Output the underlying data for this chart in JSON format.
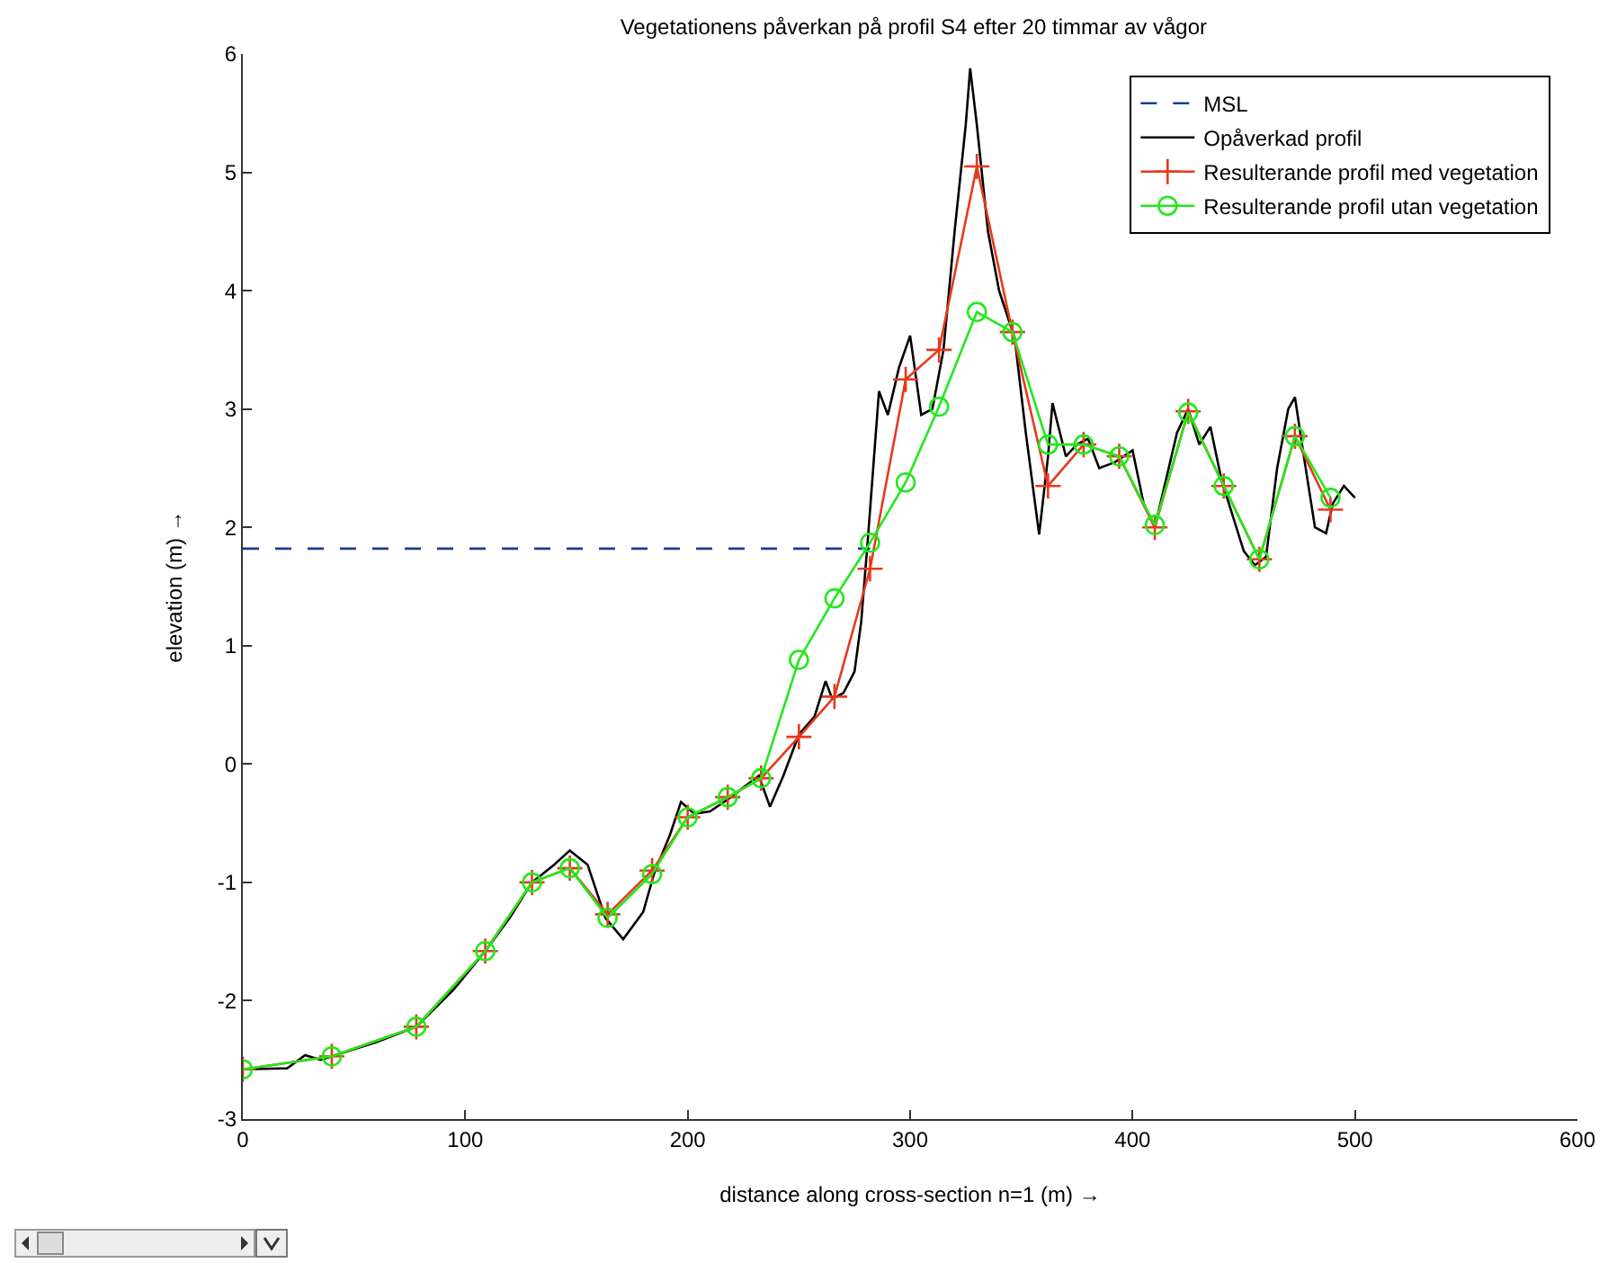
{
  "chart_data": {
    "type": "line",
    "title": "Vegetationens påverkan på profil S4 efter 20 timmar av vågor",
    "xlabel": "distance along cross-section n=1 (m) →",
    "ylabel": "elevation (m) →",
    "xlim": [
      0,
      600
    ],
    "xticks": [
      0,
      100,
      200,
      300,
      400,
      500,
      600
    ],
    "ylim": [
      -3,
      6
    ],
    "yticks": [
      -3,
      -2,
      -1,
      0,
      1,
      2,
      3,
      4,
      5,
      6
    ],
    "grid": false,
    "legend": "top right",
    "series": [
      {
        "name": "MSL",
        "color": "#1f3a93",
        "line_style": "dashed",
        "marker": "none",
        "x": [
          0,
          282
        ],
        "values": [
          1.82,
          1.82
        ]
      },
      {
        "name": "Opåverkad profil",
        "color": "#000000",
        "line_style": "solid",
        "marker": "none",
        "x": [
          0,
          20,
          28,
          35,
          40,
          60,
          78,
          95,
          109,
          120,
          130,
          140,
          147,
          155,
          163,
          171,
          180,
          185,
          192,
          197,
          203,
          210,
          218,
          225,
          232,
          237,
          243,
          250,
          257,
          262,
          265,
          270,
          275,
          278,
          281,
          286,
          290,
          295,
          300,
          305,
          310,
          315,
          320,
          325,
          327,
          330,
          335,
          340,
          347,
          352,
          358,
          362,
          364,
          370,
          375,
          380,
          385,
          392,
          400,
          405,
          410,
          415,
          420,
          425,
          430,
          435,
          440,
          445,
          450,
          455,
          460,
          465,
          470,
          473,
          477,
          482,
          487,
          490,
          495,
          500
        ],
        "values": [
          -2.58,
          -2.57,
          -2.46,
          -2.5,
          -2.47,
          -2.35,
          -2.22,
          -1.9,
          -1.58,
          -1.3,
          -1.0,
          -0.85,
          -0.73,
          -0.85,
          -1.3,
          -1.48,
          -1.25,
          -0.92,
          -0.6,
          -0.32,
          -0.42,
          -0.4,
          -0.3,
          -0.2,
          -0.1,
          -0.36,
          -0.1,
          0.25,
          0.4,
          0.7,
          0.55,
          0.6,
          0.78,
          1.2,
          1.9,
          3.15,
          2.95,
          3.35,
          3.62,
          2.95,
          3.0,
          3.5,
          4.5,
          5.4,
          5.88,
          5.4,
          4.5,
          4.0,
          3.6,
          2.8,
          1.94,
          2.6,
          3.05,
          2.6,
          2.7,
          2.75,
          2.5,
          2.55,
          2.65,
          2.2,
          2.0,
          2.4,
          2.8,
          3.0,
          2.7,
          2.85,
          2.4,
          2.1,
          1.8,
          1.68,
          1.75,
          2.5,
          3.0,
          3.1,
          2.6,
          2.0,
          1.95,
          2.2,
          2.35,
          2.25
        ]
      },
      {
        "name": "Resulterande profil med vegetation",
        "color": "#e8381c",
        "line_style": "solid",
        "marker": "cross",
        "x": [
          0,
          40,
          78,
          109,
          130,
          147,
          164,
          184,
          200,
          218,
          233,
          250,
          266,
          282,
          298,
          313,
          330,
          346,
          362,
          378,
          394,
          410,
          425,
          441,
          457,
          473,
          489
        ],
        "values": [
          -2.58,
          -2.47,
          -2.22,
          -1.58,
          -1.0,
          -0.88,
          -1.27,
          -0.9,
          -0.45,
          -0.28,
          -0.12,
          0.23,
          0.57,
          1.65,
          3.25,
          3.5,
          5.05,
          3.65,
          2.35,
          2.7,
          2.6,
          2.0,
          2.98,
          2.35,
          1.73,
          2.77,
          2.15
        ]
      },
      {
        "name": "Resulterande profil utan vegetation",
        "color": "#22e81c",
        "line_style": "solid",
        "marker": "circle",
        "x": [
          0,
          40,
          78,
          109,
          130,
          147,
          164,
          184,
          200,
          218,
          233,
          250,
          266,
          282,
          298,
          313,
          330,
          346,
          362,
          378,
          394,
          410,
          425,
          441,
          457,
          473,
          489
        ],
        "values": [
          -2.58,
          -2.47,
          -2.22,
          -1.58,
          -1.0,
          -0.88,
          -1.3,
          -0.93,
          -0.45,
          -0.28,
          -0.12,
          0.88,
          1.4,
          1.87,
          2.38,
          3.02,
          3.82,
          3.65,
          2.7,
          2.7,
          2.6,
          2.02,
          2.97,
          2.35,
          1.73,
          2.77,
          2.25
        ]
      }
    ]
  }
}
